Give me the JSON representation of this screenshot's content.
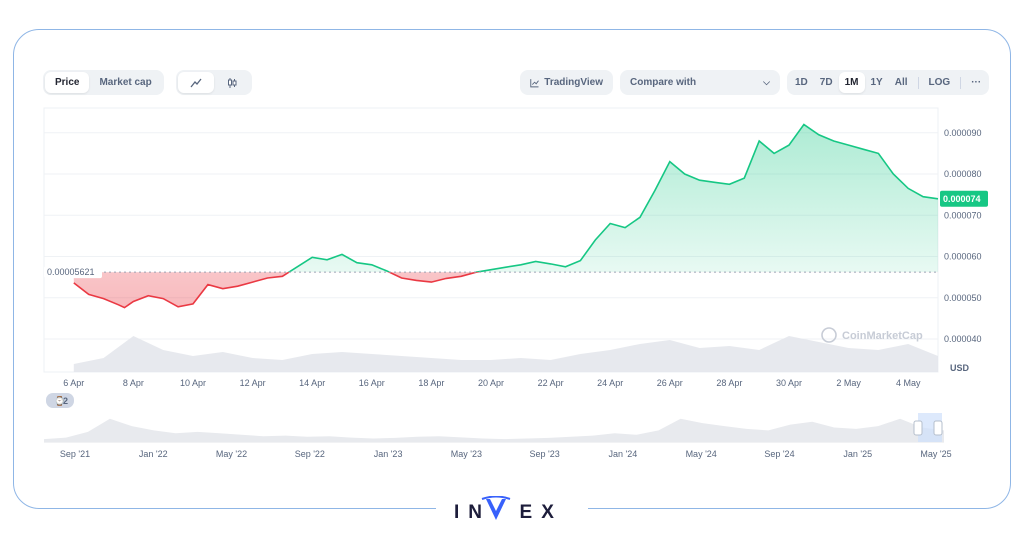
{
  "toolbar": {
    "tabs": [
      {
        "label": "Price",
        "active": true
      },
      {
        "label": "Market cap",
        "active": false
      }
    ],
    "chart_types": [
      {
        "icon": "line-chart-icon",
        "active": true
      },
      {
        "icon": "candlestick-icon",
        "active": false
      }
    ],
    "tradingview_label": "TradingView",
    "compare_label": "Compare with",
    "ranges": [
      {
        "label": "1D",
        "active": false
      },
      {
        "label": "7D",
        "active": false
      },
      {
        "label": "1M",
        "active": true
      },
      {
        "label": "1Y",
        "active": false
      },
      {
        "label": "All",
        "active": false
      }
    ],
    "log_label": "LOG",
    "more_label": "···"
  },
  "colors": {
    "up": "#16c784",
    "down": "#ea3943",
    "accent": "#3861fb",
    "frame": "#8fb6e6"
  },
  "watermark": "CoinMarketCap",
  "event_badge": "2",
  "brand": "INVEX",
  "chart_data": {
    "type": "area",
    "currency_label": "USD",
    "baseline_value": 5.621e-05,
    "baseline_label": "0.00005621",
    "current_value": 7.4e-05,
    "current_label": "0.000074",
    "ylim": [
      3.2e-05,
      9.6e-05
    ],
    "y_ticks": [
      {
        "value": 4e-05,
        "label": "0.000040"
      },
      {
        "value": 5e-05,
        "label": "0.000050"
      },
      {
        "value": 6e-05,
        "label": "0.000060"
      },
      {
        "value": 7e-05,
        "label": "0.000070"
      },
      {
        "value": 8e-05,
        "label": "0.000080"
      },
      {
        "value": 9e-05,
        "label": "0.000090"
      }
    ],
    "x_ticks": [
      "6 Apr",
      "8 Apr",
      "10 Apr",
      "12 Apr",
      "14 Apr",
      "16 Apr",
      "18 Apr",
      "20 Apr",
      "22 Apr",
      "24 Apr",
      "26 Apr",
      "28 Apr",
      "30 Apr",
      "2 May",
      "4 May"
    ],
    "xlim": [
      5.0,
      35.0
    ],
    "x_tick_start": 6,
    "x_tick_step": 2,
    "series": [
      {
        "x": [
          6.0,
          6.5,
          7.0,
          7.5,
          7.7,
          8.0,
          8.5,
          9.0,
          9.5,
          10.0,
          10.5,
          11.0,
          11.5,
          12.0,
          12.5,
          13.0,
          13.5,
          14.0,
          14.5,
          15.0,
          15.5,
          16.0,
          16.5,
          17.0,
          17.5,
          18.0,
          18.5,
          19.0,
          19.5,
          20.0,
          20.5,
          21.0,
          21.5,
          22.0,
          22.5,
          23.0,
          23.5,
          24.0,
          24.5,
          25.0,
          25.5,
          26.0,
          26.5,
          27.0,
          27.5,
          28.0,
          28.5,
          29.0,
          29.5,
          30.0,
          30.5,
          31.0,
          31.5,
          32.0,
          32.5,
          33.0,
          33.5,
          34.0,
          34.5,
          35.0
        ],
        "values": [
          5.36e-05,
          5.08e-05,
          4.98e-05,
          4.83e-05,
          4.76e-05,
          4.91e-05,
          5.05e-05,
          4.98e-05,
          4.78e-05,
          4.85e-05,
          5.32e-05,
          5.22e-05,
          5.28e-05,
          5.38e-05,
          5.48e-05,
          5.52e-05,
          5.75e-05,
          5.98e-05,
          5.92e-05,
          6.05e-05,
          5.85e-05,
          5.8e-05,
          5.65e-05,
          5.48e-05,
          5.42e-05,
          5.38e-05,
          5.47e-05,
          5.52e-05,
          5.62e-05,
          5.68e-05,
          5.74e-05,
          5.8e-05,
          5.88e-05,
          5.82e-05,
          5.75e-05,
          5.9e-05,
          6.4e-05,
          6.8e-05,
          6.7e-05,
          6.95e-05,
          7.6e-05,
          8.3e-05,
          8e-05,
          7.85e-05,
          7.8e-05,
          7.75e-05,
          7.9e-05,
          8.8e-05,
          8.5e-05,
          8.7e-05,
          9.2e-05,
          8.95e-05,
          8.8e-05,
          8.7e-05,
          8.6e-05,
          8.5e-05,
          8e-05,
          7.65e-05,
          7.45e-05,
          7.4e-05
        ]
      }
    ],
    "volume_x": [
      6,
      7,
      8,
      9,
      10,
      11,
      12,
      13,
      14,
      15,
      16,
      17,
      18,
      19,
      20,
      21,
      22,
      23,
      24,
      25,
      26,
      27,
      28,
      29,
      30,
      31,
      32,
      33,
      34,
      35
    ],
    "volume": [
      0.2,
      0.35,
      0.9,
      0.55,
      0.4,
      0.5,
      0.35,
      0.3,
      0.45,
      0.5,
      0.45,
      0.4,
      0.35,
      0.3,
      0.3,
      0.35,
      0.3,
      0.45,
      0.55,
      0.7,
      0.8,
      0.6,
      0.65,
      0.55,
      0.9,
      0.75,
      0.6,
      0.55,
      0.7,
      0.4
    ],
    "overview": {
      "x_ticks": [
        "Sep '21",
        "Jan '22",
        "May '22",
        "Sep '22",
        "Jan '23",
        "May '23",
        "Sep '23",
        "Jan '24",
        "May '24",
        "Sep '24",
        "Jan '25",
        "May '25"
      ],
      "volume": [
        0.1,
        0.15,
        0.35,
        0.8,
        0.55,
        0.4,
        0.3,
        0.35,
        0.3,
        0.25,
        0.2,
        0.22,
        0.18,
        0.2,
        0.15,
        0.12,
        0.14,
        0.18,
        0.2,
        0.16,
        0.12,
        0.1,
        0.12,
        0.14,
        0.18,
        0.22,
        0.3,
        0.25,
        0.4,
        0.8,
        0.65,
        0.55,
        0.45,
        0.4,
        0.6,
        0.7,
        0.5,
        0.45,
        0.55,
        0.8,
        0.5,
        0.4
      ]
    }
  }
}
